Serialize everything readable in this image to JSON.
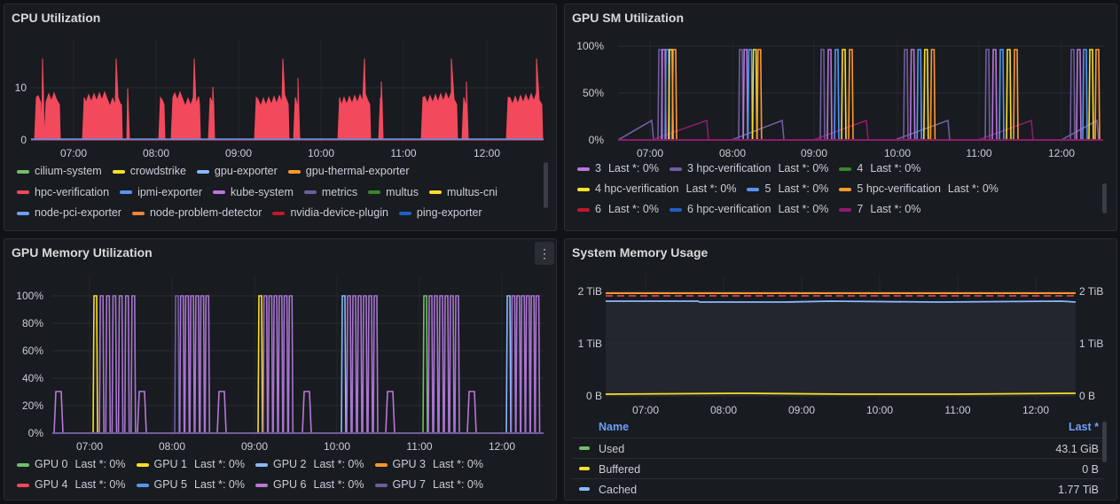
{
  "colors": {
    "cilium-system": "#73bf69",
    "crowdstrike": "#fade2a",
    "gpu-exporter": "#8ab8ff",
    "gpu-thermal-exporter": "#ff9830",
    "hpc-verification": "#f2495c",
    "ipmi-exporter": "#5794f2",
    "kube-system": "#b877d9",
    "metrics": "#705da0",
    "multus": "#37872d",
    "multus-cni": "#fade2a",
    "node-pci-exporter": "#6e9fff",
    "node-problem-detector": "#ef843c",
    "nvidia-device-plugin": "#c4162a",
    "ping-exporter": "#1f60c4"
  },
  "cpu": {
    "title": "CPU Utilization",
    "y_ticks": [
      "10",
      "0"
    ],
    "x_ticks": [
      "07:00",
      "08:00",
      "09:00",
      "10:00",
      "11:00",
      "12:00"
    ],
    "legend_rows": [
      [
        "cilium-system",
        "crowdstrike",
        "gpu-exporter",
        "gpu-thermal-exporter"
      ],
      [
        "hpc-verification",
        "ipmi-exporter",
        "kube-system",
        "metrics",
        "multus",
        "multus-cni"
      ],
      [
        "node-pci-exporter",
        "node-problem-detector",
        "nvidia-device-plugin",
        "ping-exporter"
      ]
    ]
  },
  "gpu_sm": {
    "title": "GPU SM Utilization",
    "y_ticks": [
      "100%",
      "50%",
      "0%"
    ],
    "x_ticks": [
      "07:00",
      "08:00",
      "09:00",
      "10:00",
      "11:00",
      "12:00"
    ],
    "legend_rows": [
      [
        {
          "name": "3",
          "last": "Last *: 0%",
          "color": "#b877d9"
        },
        {
          "name": "3 hpc-verification",
          "last": "Last *: 0%",
          "color": "#705da0"
        },
        {
          "name": "4",
          "last": "Last *: 0%",
          "color": "#37872d"
        }
      ],
      [
        {
          "name": "4 hpc-verification",
          "last": "Last *: 0%",
          "color": "#fade2a"
        },
        {
          "name": "5",
          "last": "Last *: 0%",
          "color": "#5794f2"
        },
        {
          "name": "5 hpc-verification",
          "last": "Last *: 0%",
          "color": "#ff9830"
        }
      ],
      [
        {
          "name": "6",
          "last": "Last *: 0%",
          "color": "#c4162a"
        },
        {
          "name": "6 hpc-verification",
          "last": "Last *: 0%",
          "color": "#1f60c4"
        },
        {
          "name": "7",
          "last": "Last *: 0%",
          "color": "#8f1b6e"
        }
      ]
    ]
  },
  "gpu_mem": {
    "title": "GPU Memory Utilization",
    "menu_icon": "⋮",
    "y_ticks": [
      "100%",
      "80%",
      "60%",
      "40%",
      "20%",
      "0%"
    ],
    "x_ticks": [
      "07:00",
      "08:00",
      "09:00",
      "10:00",
      "11:00",
      "12:00"
    ],
    "legend_rows": [
      [
        {
          "name": "GPU 0",
          "last": "Last *: 0%",
          "color": "#73bf69"
        },
        {
          "name": "GPU 1",
          "last": "Last *: 0%",
          "color": "#fade2a"
        },
        {
          "name": "GPU 2",
          "last": "Last *: 0%",
          "color": "#8ab8ff"
        },
        {
          "name": "GPU 3",
          "last": "Last *: 0%",
          "color": "#ff9830"
        }
      ],
      [
        {
          "name": "GPU 4",
          "last": "Last *: 0%",
          "color": "#f2495c"
        },
        {
          "name": "GPU 5",
          "last": "Last *: 0%",
          "color": "#5794f2"
        },
        {
          "name": "GPU 6",
          "last": "Last *: 0%",
          "color": "#b877d9"
        },
        {
          "name": "GPU 7",
          "last": "Last *: 0%",
          "color": "#705da0"
        }
      ]
    ]
  },
  "sys_mem": {
    "title": "System Memory Usage",
    "y_ticks_left": [
      "2 TiB",
      "1 TiB",
      "0 B"
    ],
    "y_ticks_right": [
      "2 TiB",
      "1 TiB",
      "0 B"
    ],
    "x_ticks": [
      "07:00",
      "08:00",
      "09:00",
      "10:00",
      "11:00",
      "12:00"
    ],
    "table": {
      "header_name": "Name",
      "header_last": "Last *",
      "rows": [
        {
          "name": "Used",
          "value": "43.1 GiB",
          "color": "#73bf69"
        },
        {
          "name": "Buffered",
          "value": "0 B",
          "color": "#fade2a"
        },
        {
          "name": "Cached",
          "value": "1.77 TiB",
          "color": "#8ab8ff"
        }
      ]
    }
  }
}
